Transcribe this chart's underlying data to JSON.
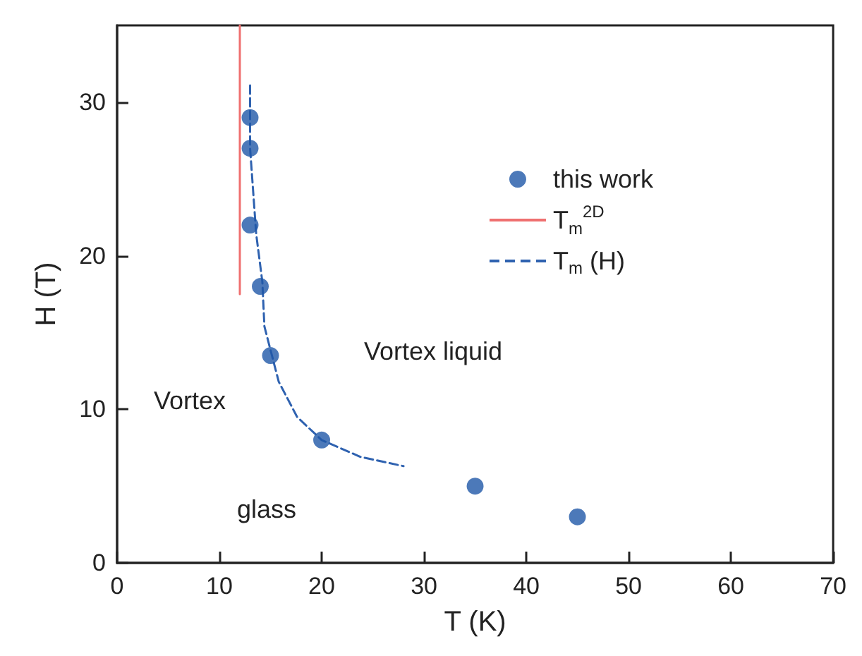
{
  "chart_data": {
    "type": "scatter",
    "xlabel": "T (K)",
    "ylabel": "H (T)",
    "xlim": [
      0,
      70
    ],
    "xticks": [
      0,
      10,
      20,
      30,
      40,
      50,
      60,
      70
    ],
    "ylim": [
      0,
      35
    ],
    "yticks": [
      0,
      10,
      20,
      30
    ],
    "grid": false,
    "legend": "top right",
    "marker": "circle",
    "series": [
      {
        "name": "this work",
        "color": "#1f57a8",
        "x": [
          13,
          13,
          13,
          14,
          15,
          20,
          35,
          45
        ],
        "values": [
          29,
          27,
          22,
          18,
          13.5,
          8,
          5,
          3
        ]
      },
      {
        "name": "T$_{m}$$^{2D}$",
        "type": "line",
        "color": "#ef7070",
        "line_style": "solid",
        "marker": "none",
        "x": [
          12,
          12
        ],
        "values": [
          17.5,
          35
        ]
      },
      {
        "name": "T$_{m}$ (H)",
        "type": "line",
        "color": "#2f62b0",
        "line_style": "dashed",
        "marker": "none",
        "x": [
          13,
          13,
          13.6,
          14.2,
          14.4,
          15.8,
          17.6,
          20,
          23.8,
          28
        ],
        "values": [
          31.1,
          27,
          21.4,
          18.3,
          15.4,
          11.8,
          9.5,
          8,
          6.9,
          6.3
        ]
      }
    ],
    "annotations": [
      "Vortex liquid",
      "Vortex",
      "glass"
    ]
  }
}
